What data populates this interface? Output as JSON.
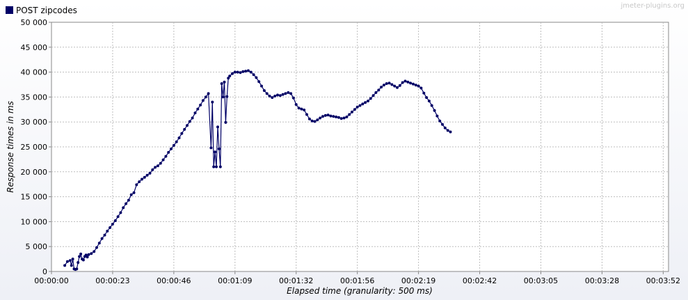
{
  "watermark": "jmeter-plugins.org",
  "colors": {
    "series": "#000066",
    "grid": "#bdbdbd",
    "plot_bg": "#ffffff"
  },
  "chart_data": {
    "type": "line",
    "title": "",
    "xlabel": "Elapsed time (granularity: 500 ms)",
    "ylabel": "Response times in ms",
    "x_unit": "seconds",
    "xlim": [
      0,
      232
    ],
    "ylim": [
      0,
      50000
    ],
    "x_ticks": [
      0,
      23,
      46,
      69,
      92,
      115,
      138,
      161,
      184,
      207,
      230
    ],
    "x_tick_labels": [
      "00:00:00",
      "00:00:23",
      "00:00:46",
      "00:01:09",
      "00:01:32",
      "00:01:56",
      "00:02:19",
      "00:02:42",
      "00:03:05",
      "00:03:28",
      "00:03:52"
    ],
    "y_ticks": [
      0,
      5000,
      10000,
      15000,
      20000,
      25000,
      30000,
      35000,
      40000,
      45000,
      50000
    ],
    "y_tick_labels": [
      "0",
      "5 000",
      "10 000",
      "15 000",
      "20 000",
      "25 000",
      "30 000",
      "35 000",
      "40 000",
      "45 000",
      "50 000"
    ],
    "grid": true,
    "legend_position": "top-left",
    "series": [
      {
        "name": "POST zipcodes",
        "points": [
          [
            5,
            1200
          ],
          [
            6,
            2000
          ],
          [
            7,
            2200
          ],
          [
            7.5,
            1200
          ],
          [
            8,
            2500
          ],
          [
            8.5,
            500
          ],
          [
            9,
            400
          ],
          [
            9.5,
            500
          ],
          [
            10,
            1800
          ],
          [
            10.5,
            3000
          ],
          [
            11,
            3500
          ],
          [
            11.5,
            2500
          ],
          [
            12,
            2300
          ],
          [
            12.5,
            3000
          ],
          [
            13,
            3300
          ],
          [
            13.5,
            2900
          ],
          [
            14,
            3400
          ],
          [
            15,
            3600
          ],
          [
            16,
            4000
          ],
          [
            17,
            4800
          ],
          [
            18,
            5700
          ],
          [
            19,
            6600
          ],
          [
            20,
            7300
          ],
          [
            21,
            8100
          ],
          [
            22,
            8800
          ],
          [
            23,
            9500
          ],
          [
            24,
            10200
          ],
          [
            25,
            11000
          ],
          [
            26,
            11800
          ],
          [
            27,
            12800
          ],
          [
            28,
            13600
          ],
          [
            29,
            14300
          ],
          [
            30,
            15400
          ],
          [
            31,
            15800
          ],
          [
            32,
            17400
          ],
          [
            33,
            18000
          ],
          [
            34,
            18500
          ],
          [
            35,
            18900
          ],
          [
            36,
            19300
          ],
          [
            37,
            19700
          ],
          [
            38,
            20400
          ],
          [
            39,
            20900
          ],
          [
            40,
            21200
          ],
          [
            41,
            21700
          ],
          [
            42,
            22400
          ],
          [
            43,
            23100
          ],
          [
            44,
            23900
          ],
          [
            45,
            24600
          ],
          [
            46,
            25300
          ],
          [
            47,
            26000
          ],
          [
            48,
            26800
          ],
          [
            49,
            27700
          ],
          [
            50,
            28500
          ],
          [
            51,
            29300
          ],
          [
            52,
            30100
          ],
          [
            53,
            30800
          ],
          [
            54,
            31800
          ],
          [
            55,
            32600
          ],
          [
            56,
            33400
          ],
          [
            57,
            34300
          ],
          [
            58,
            35000
          ],
          [
            59,
            35700
          ],
          [
            60,
            24800
          ],
          [
            60.5,
            34000
          ],
          [
            61,
            21000
          ],
          [
            61.5,
            24000
          ],
          [
            62,
            21000
          ],
          [
            62.5,
            29000
          ],
          [
            63,
            24600
          ],
          [
            63.5,
            21000
          ],
          [
            64,
            37700
          ],
          [
            64.5,
            35000
          ],
          [
            65,
            38000
          ],
          [
            65.5,
            29900
          ],
          [
            66,
            35100
          ],
          [
            66.5,
            38800
          ],
          [
            67,
            39200
          ],
          [
            68,
            39700
          ],
          [
            69,
            40000
          ],
          [
            70,
            40000
          ],
          [
            71,
            39900
          ],
          [
            72,
            40100
          ],
          [
            73,
            40200
          ],
          [
            74,
            40300
          ],
          [
            75,
            40000
          ],
          [
            76,
            39500
          ],
          [
            77,
            38900
          ],
          [
            78,
            38100
          ],
          [
            79,
            37200
          ],
          [
            80,
            36300
          ],
          [
            81,
            35700
          ],
          [
            82,
            35200
          ],
          [
            83,
            34900
          ],
          [
            84,
            35200
          ],
          [
            85,
            35400
          ],
          [
            86,
            35300
          ],
          [
            87,
            35500
          ],
          [
            88,
            35700
          ],
          [
            89,
            35900
          ],
          [
            90,
            35700
          ],
          [
            91,
            34800
          ],
          [
            92,
            33500
          ],
          [
            93,
            32800
          ],
          [
            94,
            32600
          ],
          [
            95,
            32400
          ],
          [
            96,
            31500
          ],
          [
            97,
            30600
          ],
          [
            98,
            30200
          ],
          [
            99,
            30100
          ],
          [
            100,
            30400
          ],
          [
            101,
            30800
          ],
          [
            102,
            31100
          ],
          [
            103,
            31300
          ],
          [
            104,
            31400
          ],
          [
            105,
            31200
          ],
          [
            106,
            31100
          ],
          [
            107,
            31000
          ],
          [
            108,
            30900
          ],
          [
            109,
            30700
          ],
          [
            110,
            30800
          ],
          [
            111,
            31000
          ],
          [
            112,
            31500
          ],
          [
            113,
            32000
          ],
          [
            114,
            32500
          ],
          [
            115,
            33000
          ],
          [
            116,
            33300
          ],
          [
            117,
            33600
          ],
          [
            118,
            33900
          ],
          [
            119,
            34200
          ],
          [
            120,
            34700
          ],
          [
            121,
            35300
          ],
          [
            122,
            35900
          ],
          [
            123,
            36400
          ],
          [
            124,
            37000
          ],
          [
            125,
            37400
          ],
          [
            126,
            37700
          ],
          [
            127,
            37800
          ],
          [
            128,
            37500
          ],
          [
            129,
            37200
          ],
          [
            130,
            36900
          ],
          [
            131,
            37300
          ],
          [
            132,
            37900
          ],
          [
            133,
            38200
          ],
          [
            134,
            38000
          ],
          [
            135,
            37800
          ],
          [
            136,
            37600
          ],
          [
            137,
            37400
          ],
          [
            138,
            37200
          ],
          [
            139,
            36800
          ],
          [
            140,
            35800
          ],
          [
            141,
            34900
          ],
          [
            142,
            34200
          ],
          [
            143,
            33300
          ],
          [
            144,
            32300
          ],
          [
            145,
            31200
          ],
          [
            146,
            30200
          ],
          [
            147,
            29500
          ],
          [
            148,
            28800
          ],
          [
            149,
            28300
          ],
          [
            150,
            28000
          ]
        ]
      }
    ]
  }
}
